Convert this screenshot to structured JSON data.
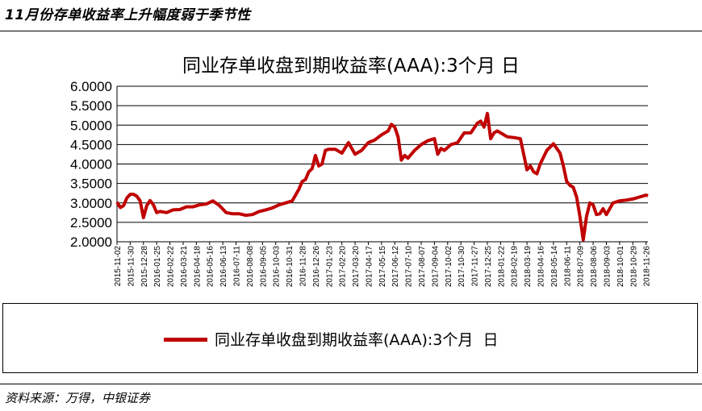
{
  "heading": "11月份存单收益率上升幅度弱于季节性",
  "source": "资料来源：万得，中银证券",
  "chart_data": {
    "type": "line",
    "title": "同业存单收盘到期收益率(AAA):3个月  日",
    "legend": {
      "placement": "bottom",
      "label": "同业存单收盘到期收益率(AAA):3个月  日"
    },
    "grid": "horizontal",
    "xlabel": "",
    "ylabel": "",
    "ylim": [
      2.0,
      6.0
    ],
    "y_ticks": [
      "2.0000",
      "2.5000",
      "3.0000",
      "3.5000",
      "4.0000",
      "4.5000",
      "5.0000",
      "5.5000",
      "6.0000"
    ],
    "x_ticks": [
      "2015-11-02",
      "2015-11-30",
      "2015-12-28",
      "2016-01-25",
      "2016-02-22",
      "2016-03-21",
      "2016-04-18",
      "2016-05-16",
      "2016-06-13",
      "2016-07-11",
      "2016-08-08",
      "2016-09-05",
      "2016-10-03",
      "2016-10-31",
      "2016-11-28",
      "2016-12-26",
      "2017-01-23",
      "2017-02-20",
      "2017-03-20",
      "2017-04-17",
      "2017-05-15",
      "2017-06-12",
      "2017-07-10",
      "2017-08-07",
      "2017-09-04",
      "2017-10-02",
      "2017-10-30",
      "2017-11-27",
      "2017-12-25",
      "2018-01-22",
      "2018-02-19",
      "2018-03-19",
      "2018-04-16",
      "2018-05-14",
      "2018-06-11",
      "2018-07-09",
      "2018-08-06",
      "2018-09-03",
      "2018-10-01",
      "2018-10-29",
      "2018-11-26"
    ],
    "series": [
      {
        "name": "同业存单收盘到期收益率(AAA):3个月  日",
        "color": "#c00000",
        "x": [
          "2015-11-02",
          "2015-11-09",
          "2015-11-16",
          "2015-11-23",
          "2015-11-30",
          "2015-12-07",
          "2015-12-14",
          "2015-12-21",
          "2015-12-28",
          "2016-01-04",
          "2016-01-11",
          "2016-01-18",
          "2016-01-25",
          "2016-02-01",
          "2016-02-15",
          "2016-02-29",
          "2016-03-14",
          "2016-03-28",
          "2016-04-11",
          "2016-04-25",
          "2016-05-09",
          "2016-05-23",
          "2016-06-06",
          "2016-06-20",
          "2016-07-04",
          "2016-07-18",
          "2016-08-01",
          "2016-08-15",
          "2016-08-29",
          "2016-09-12",
          "2016-09-26",
          "2016-10-10",
          "2016-10-24",
          "2016-11-07",
          "2016-11-21",
          "2016-11-28",
          "2016-12-05",
          "2016-12-12",
          "2016-12-19",
          "2016-12-26",
          "2017-01-02",
          "2017-01-09",
          "2017-01-16",
          "2017-01-23",
          "2017-02-06",
          "2017-02-20",
          "2017-03-06",
          "2017-03-20",
          "2017-04-03",
          "2017-04-17",
          "2017-05-01",
          "2017-05-15",
          "2017-05-29",
          "2017-06-05",
          "2017-06-12",
          "2017-06-19",
          "2017-06-26",
          "2017-07-03",
          "2017-07-10",
          "2017-07-24",
          "2017-08-07",
          "2017-08-21",
          "2017-09-04",
          "2017-09-11",
          "2017-09-18",
          "2017-09-25",
          "2017-10-09",
          "2017-10-23",
          "2017-11-06",
          "2017-11-20",
          "2017-12-04",
          "2017-12-11",
          "2017-12-18",
          "2017-12-25",
          "2018-01-01",
          "2018-01-08",
          "2018-01-15",
          "2018-01-22",
          "2018-02-05",
          "2018-02-19",
          "2018-03-05",
          "2018-03-19",
          "2018-03-26",
          "2018-04-02",
          "2018-04-09",
          "2018-04-16",
          "2018-04-30",
          "2018-05-14",
          "2018-05-28",
          "2018-06-04",
          "2018-06-11",
          "2018-06-18",
          "2018-06-25",
          "2018-07-02",
          "2018-07-09",
          "2018-07-16",
          "2018-07-23",
          "2018-07-30",
          "2018-08-06",
          "2018-08-13",
          "2018-08-20",
          "2018-08-27",
          "2018-09-03",
          "2018-09-17",
          "2018-10-01",
          "2018-10-15",
          "2018-10-29",
          "2018-11-12",
          "2018-11-26",
          "2018-11-30"
        ],
        "y": [
          3.02,
          2.88,
          2.93,
          3.13,
          3.22,
          3.22,
          3.17,
          3.05,
          2.62,
          2.93,
          3.06,
          2.95,
          2.75,
          2.78,
          2.75,
          2.82,
          2.83,
          2.9,
          2.9,
          2.95,
          2.97,
          3.05,
          2.93,
          2.75,
          2.72,
          2.72,
          2.68,
          2.7,
          2.78,
          2.82,
          2.87,
          2.95,
          3.0,
          3.05,
          3.35,
          3.55,
          3.6,
          3.8,
          3.88,
          4.22,
          3.95,
          4.0,
          4.35,
          4.38,
          4.38,
          4.28,
          4.55,
          4.25,
          4.35,
          4.55,
          4.62,
          4.75,
          4.85,
          5.02,
          4.95,
          4.7,
          4.1,
          4.22,
          4.15,
          4.35,
          4.5,
          4.6,
          4.65,
          4.25,
          4.4,
          4.35,
          4.5,
          4.55,
          4.8,
          4.8,
          5.05,
          5.1,
          4.95,
          5.3,
          4.65,
          4.8,
          4.85,
          4.8,
          4.7,
          4.68,
          4.65,
          3.85,
          3.95,
          3.8,
          3.75,
          4.0,
          4.35,
          4.52,
          4.28,
          3.95,
          3.55,
          3.45,
          3.4,
          3.15,
          2.65,
          2.05,
          2.65,
          3.0,
          2.95,
          2.7,
          2.72,
          2.85,
          2.7,
          3.0,
          3.05,
          3.07,
          3.1,
          3.15,
          3.2,
          3.18
        ]
      }
    ]
  }
}
